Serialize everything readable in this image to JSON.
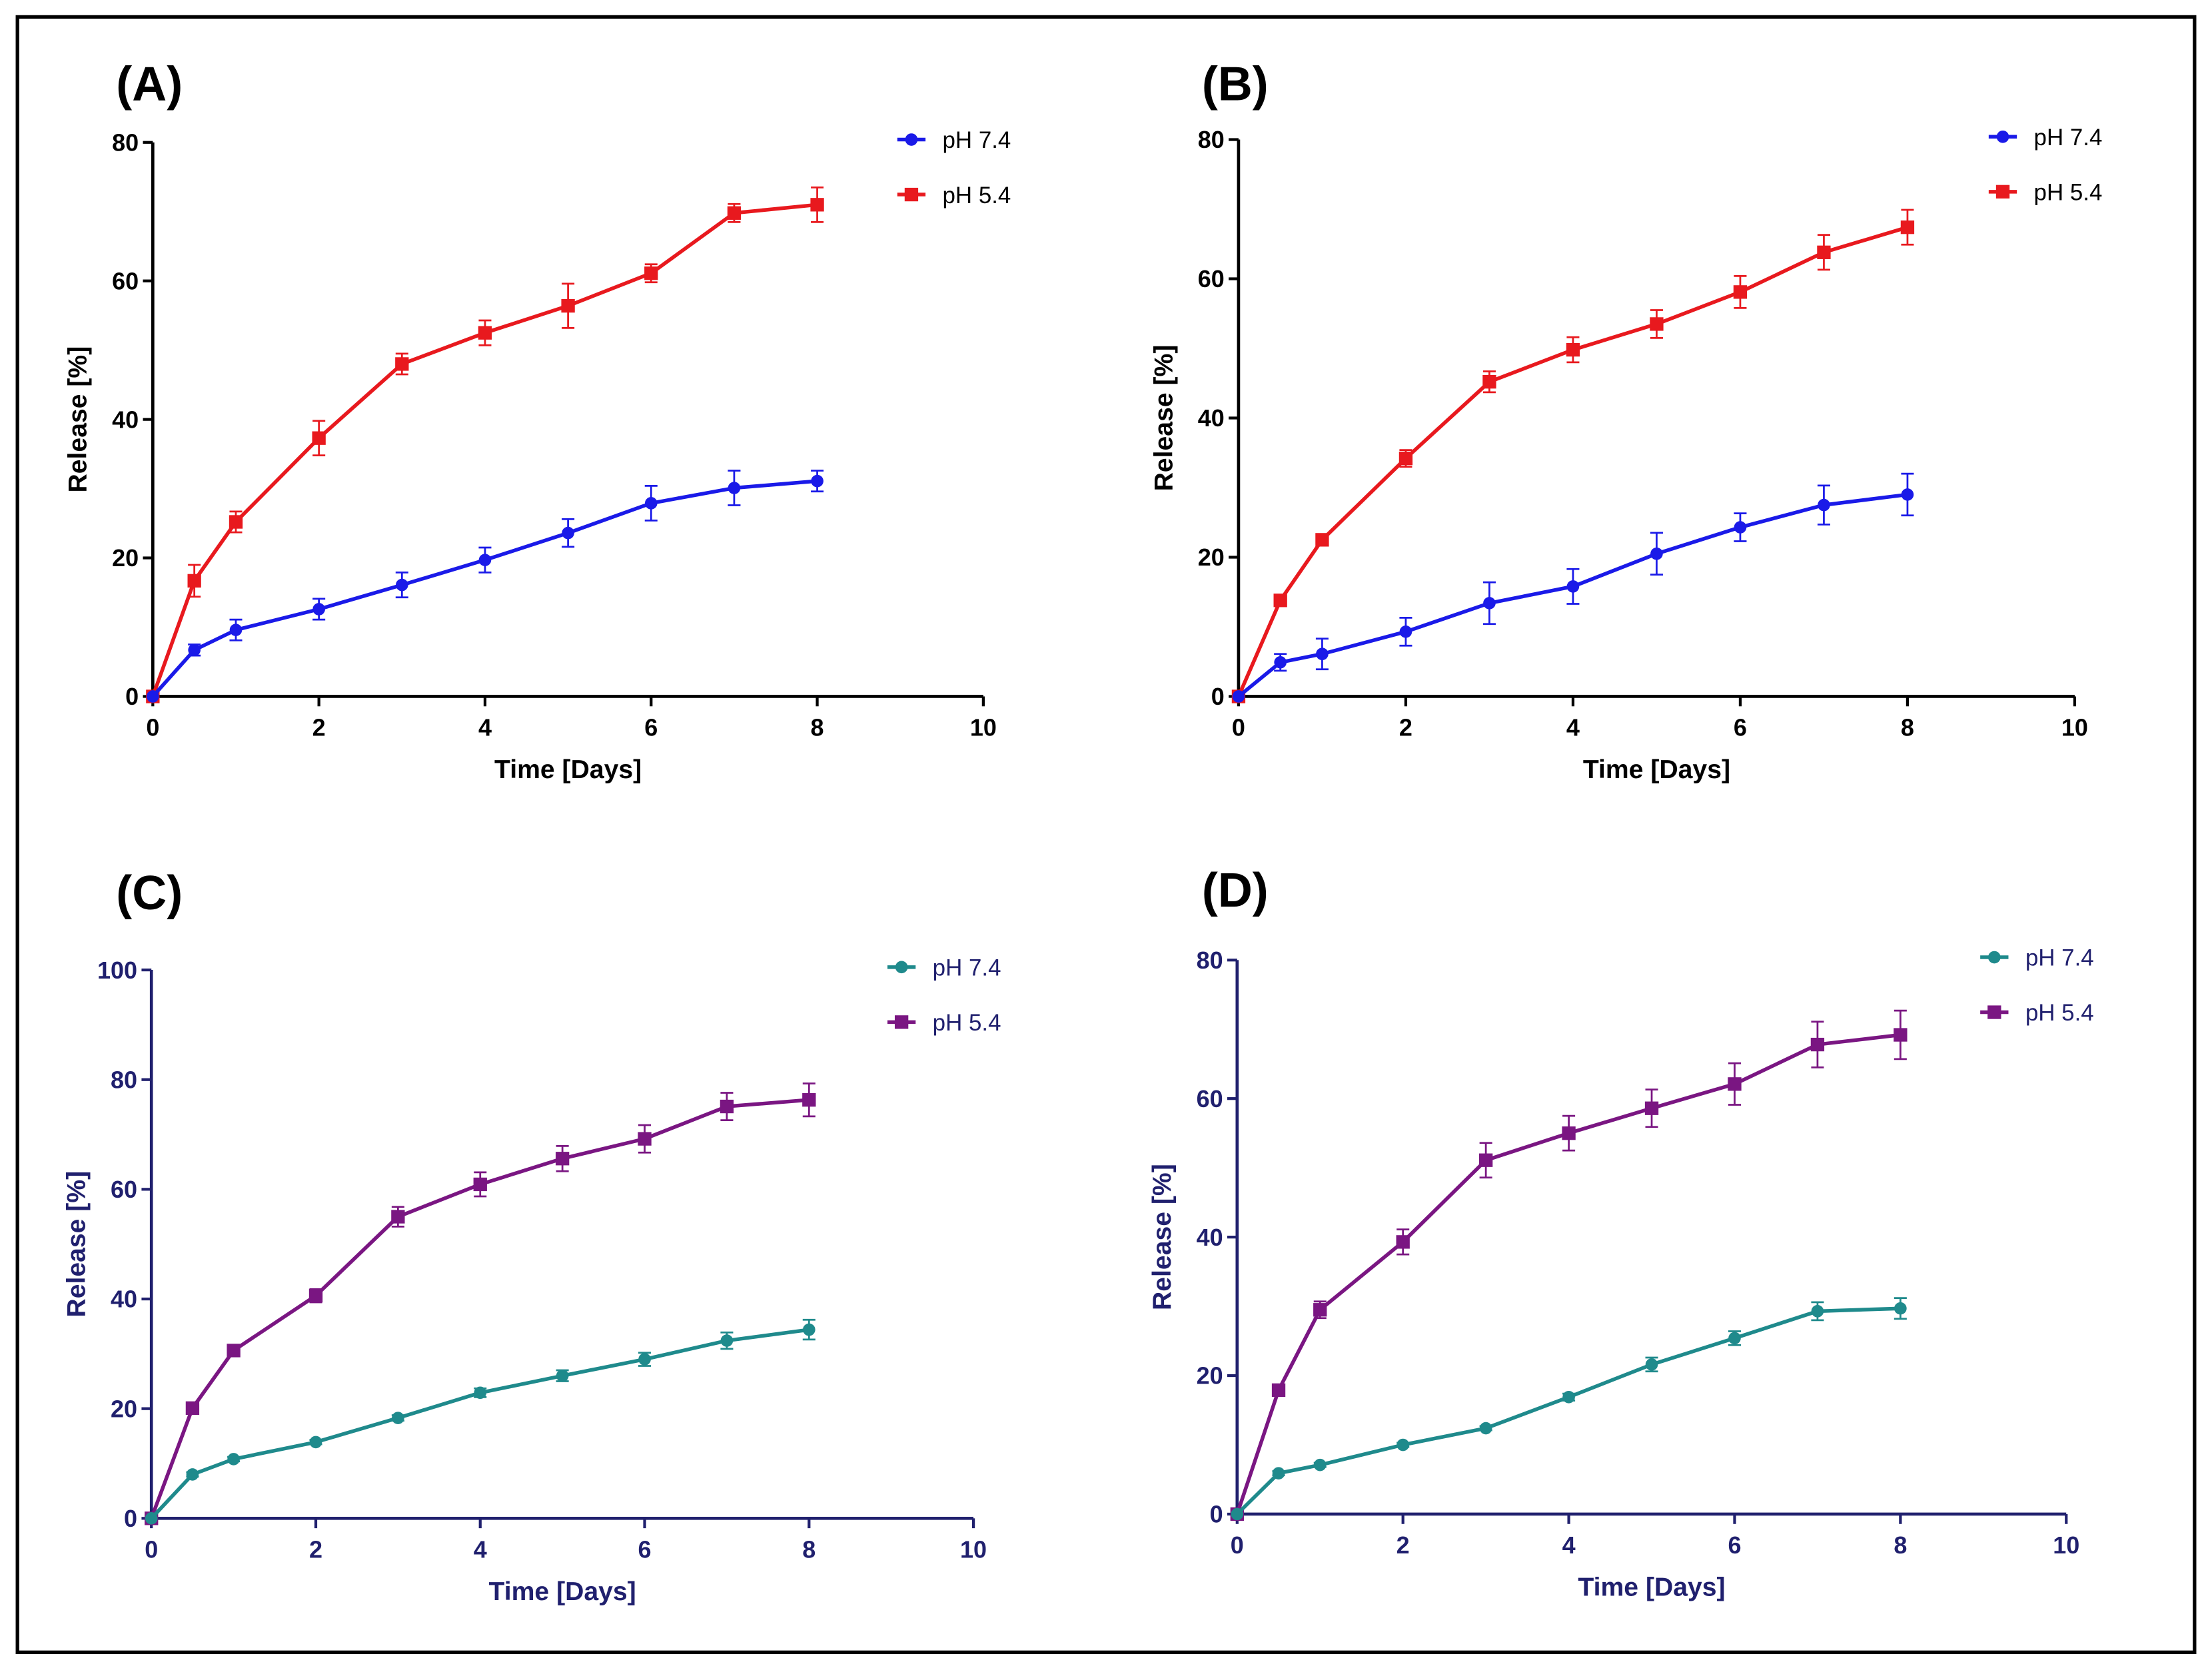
{
  "figure": {
    "border_color": "#000000",
    "background": "#ffffff"
  },
  "chart_data": [
    {
      "type": "line",
      "title": "(A)",
      "xlabel": "Time [Days]",
      "ylabel": "Release [%]",
      "xlim": [
        0,
        10
      ],
      "ylim": [
        0,
        80
      ],
      "xticks": [
        0,
        2,
        4,
        6,
        8,
        10
      ],
      "yticks": [
        0,
        20,
        40,
        60,
        80
      ],
      "legend": "top-right",
      "axis_color": "#000000",
      "x": [
        0,
        0.5,
        1,
        2,
        3,
        4,
        5,
        6,
        7,
        8
      ],
      "series": [
        {
          "name": "pH 7.4",
          "color": "#1a1ae8",
          "marker": "circle",
          "values": [
            0,
            6.7,
            9.6,
            12.6,
            16.1,
            19.7,
            23.6,
            27.9,
            30.1,
            31.1
          ],
          "errors": [
            0,
            0.8,
            1.5,
            1.5,
            1.8,
            1.8,
            2.0,
            2.5,
            2.5,
            1.5
          ]
        },
        {
          "name": "pH 5.4",
          "color": "#e8191e",
          "marker": "square",
          "values": [
            0,
            16.7,
            25.2,
            37.3,
            48.0,
            52.5,
            56.4,
            61.1,
            69.8,
            71.0
          ],
          "errors": [
            0,
            2.3,
            1.5,
            2.5,
            1.5,
            1.8,
            3.2,
            1.3,
            1.3,
            2.5
          ]
        }
      ]
    },
    {
      "type": "line",
      "title": "(B)",
      "xlabel": "Time [Days]",
      "ylabel": "Release [%]",
      "xlim": [
        0,
        10
      ],
      "ylim": [
        0,
        80
      ],
      "xticks": [
        0,
        2,
        4,
        6,
        8,
        10
      ],
      "yticks": [
        0,
        20,
        40,
        60,
        80
      ],
      "legend": "top-right",
      "axis_color": "#000000",
      "x": [
        0,
        0.5,
        1,
        2,
        3,
        4,
        5,
        6,
        7,
        8
      ],
      "series": [
        {
          "name": "pH 7.4",
          "color": "#1a1ae8",
          "marker": "circle",
          "values": [
            0,
            4.9,
            6.1,
            9.3,
            13.4,
            15.8,
            20.5,
            24.3,
            27.5,
            29.0
          ],
          "errors": [
            0,
            1.2,
            2.2,
            2.0,
            3.0,
            2.5,
            3.0,
            2.0,
            2.8,
            3.0
          ]
        },
        {
          "name": "pH 5.4",
          "color": "#e8191e",
          "marker": "square",
          "values": [
            0,
            13.8,
            22.5,
            34.2,
            45.2,
            49.8,
            53.5,
            58.1,
            63.8,
            67.4
          ],
          "errors": [
            0,
            0.8,
            0.8,
            1.2,
            1.5,
            1.8,
            2.0,
            2.3,
            2.5,
            2.5
          ]
        }
      ]
    },
    {
      "type": "line",
      "title": "(C)",
      "xlabel": "Time [Days]",
      "ylabel": "Release [%]",
      "xlim": [
        0,
        10
      ],
      "ylim": [
        0,
        100
      ],
      "xticks": [
        0,
        2,
        4,
        6,
        8,
        10
      ],
      "yticks": [
        0,
        20,
        40,
        60,
        80,
        100
      ],
      "legend": "top-right",
      "axis_color": "#20206e",
      "x": [
        0,
        0.5,
        1,
        2,
        3,
        4,
        5,
        6,
        7,
        8
      ],
      "series": [
        {
          "name": "pH 7.4",
          "color": "#1f8a8c",
          "marker": "circle",
          "values": [
            0,
            8.0,
            10.8,
            13.9,
            18.3,
            22.9,
            26.0,
            29.0,
            32.4,
            34.4
          ],
          "errors": [
            0,
            0.4,
            0.4,
            0.4,
            0.5,
            0.8,
            1.0,
            1.2,
            1.5,
            1.8
          ]
        },
        {
          "name": "pH 5.4",
          "color": "#7a1682",
          "marker": "square",
          "values": [
            0,
            20.1,
            30.6,
            40.6,
            55.0,
            60.9,
            65.6,
            69.2,
            75.1,
            76.3
          ],
          "errors": [
            0,
            0.5,
            0.8,
            1.2,
            1.8,
            2.2,
            2.3,
            2.5,
            2.5,
            3.0
          ]
        }
      ]
    },
    {
      "type": "line",
      "title": "(D)",
      "xlabel": "Time [Days]",
      "ylabel": "Release [%]",
      "xlim": [
        0,
        10
      ],
      "ylim": [
        0,
        80
      ],
      "xticks": [
        0,
        2,
        4,
        6,
        8,
        10
      ],
      "yticks": [
        0,
        20,
        40,
        60,
        80
      ],
      "legend": "top-right",
      "axis_color": "#20206e",
      "x": [
        0,
        0.5,
        1,
        2,
        3,
        4,
        5,
        6,
        7,
        8
      ],
      "series": [
        {
          "name": "pH 7.4",
          "color": "#1f8a8c",
          "marker": "circle",
          "values": [
            0,
            5.9,
            7.1,
            10.0,
            12.4,
            16.9,
            21.6,
            25.4,
            29.3,
            29.7
          ],
          "errors": [
            0,
            0.3,
            0.3,
            0.3,
            0.3,
            0.5,
            1.0,
            1.0,
            1.3,
            1.5
          ]
        },
        {
          "name": "pH 5.4",
          "color": "#7a1682",
          "marker": "square",
          "values": [
            0,
            17.9,
            29.5,
            39.3,
            51.1,
            55.0,
            58.6,
            62.1,
            67.8,
            69.2
          ],
          "errors": [
            0,
            0.8,
            1.2,
            1.8,
            2.5,
            2.5,
            2.7,
            3.0,
            3.3,
            3.5
          ]
        }
      ]
    }
  ]
}
